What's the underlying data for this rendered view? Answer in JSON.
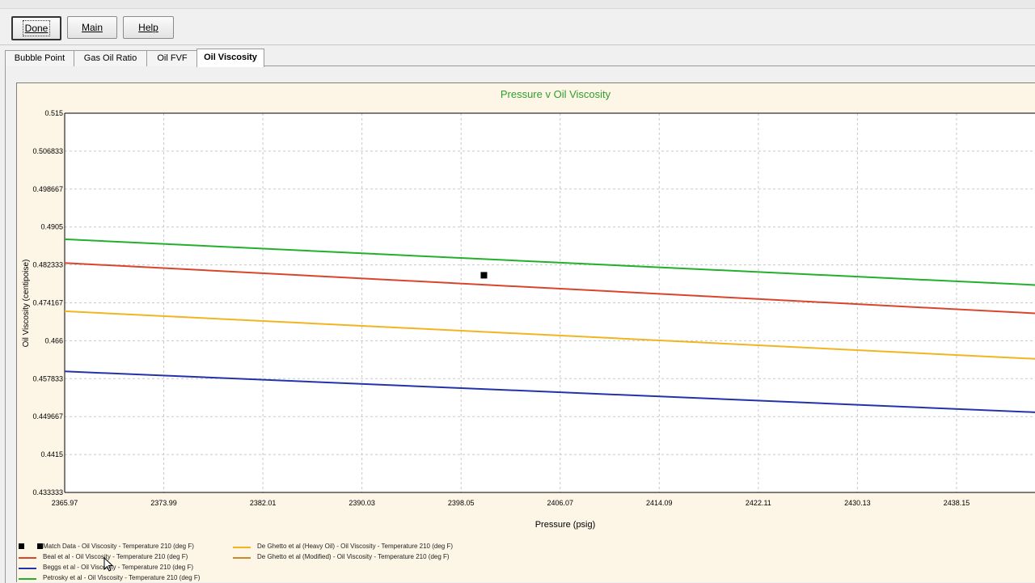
{
  "toolbar": {
    "done_label": "Done",
    "main_label": "Main",
    "help_label": "Help"
  },
  "tabs": [
    {
      "label": "Bubble Point"
    },
    {
      "label": "Gas Oil Ratio"
    },
    {
      "label": "Oil FVF"
    },
    {
      "label": "Oil Viscosity",
      "active": true
    }
  ],
  "colors": {
    "title": "#2e9e2e",
    "match": "#000000",
    "beal": "#d9452b",
    "beggs": "#2233aa",
    "petrosky": "#22b02a",
    "deghetto_heavy": "#f2b51f",
    "deghetto_mod": "#c98a2a"
  },
  "chart_data": {
    "type": "line",
    "title": "Pressure v Oil Viscosity",
    "xlabel": "Pressure  (psig)",
    "ylabel": "Oil Viscosity  (centipoise)",
    "xlim": [
      2365.97,
      2444.5
    ],
    "ylim": [
      0.433333,
      0.515
    ],
    "x_ticks": [
      "2365.97",
      "2373.99",
      "2382.01",
      "2390.03",
      "2398.05",
      "2406.07",
      "2414.09",
      "2422.11",
      "2430.13",
      "2438.15"
    ],
    "x_tick_values": [
      2365.97,
      2373.99,
      2382.01,
      2390.03,
      2398.05,
      2406.07,
      2414.09,
      2422.11,
      2430.13,
      2438.15
    ],
    "y_ticks": [
      "0.515",
      "0.506833",
      "0.498667",
      "0.4905",
      "0.482333",
      "0.474167",
      "0.466",
      "0.457833",
      "0.449667",
      "0.4415",
      "0.433333"
    ],
    "y_tick_values": [
      0.515,
      0.506833,
      0.498667,
      0.4905,
      0.482333,
      0.474167,
      0.466,
      0.457833,
      0.449667,
      0.4415,
      0.433333
    ],
    "grid": true,
    "legend_position": "bottom",
    "series": [
      {
        "name": "Match Data - Oil Viscosity - Temperature 210 (deg F)",
        "kind": "marker",
        "color": "#000000",
        "points": [
          [
            2399.9,
            0.4801
          ]
        ]
      },
      {
        "name": "Beal et al - Oil Viscosity - Temperature 210 (deg F)",
        "kind": "line",
        "color": "#d9452b",
        "points": [
          [
            2365.97,
            0.48275
          ],
          [
            2444.5,
            0.4719
          ]
        ]
      },
      {
        "name": "Beggs et al - Oil Viscosity - Temperature 210 (deg F)",
        "kind": "line",
        "color": "#2233aa",
        "points": [
          [
            2365.97,
            0.4594
          ],
          [
            2444.5,
            0.4506
          ]
        ]
      },
      {
        "name": "Petrosky et al - Oil Viscosity - Temperature 210 (deg F)",
        "kind": "line",
        "color": "#22b02a",
        "points": [
          [
            2365.97,
            0.48785
          ],
          [
            2444.5,
            0.478
          ]
        ]
      },
      {
        "name": "De Ghetto et al (Heavy Oil) - Oil Viscosity - Temperature 210 (deg F)",
        "kind": "line",
        "color": "#f2b51f",
        "points": [
          [
            2365.97,
            0.47235
          ],
          [
            2444.5,
            0.4621
          ]
        ]
      },
      {
        "name": "De Ghetto et al (Modified) - Oil Viscosity - Temperature 210 (deg F)",
        "kind": "line",
        "color": "#c98a2a",
        "points": []
      }
    ]
  }
}
